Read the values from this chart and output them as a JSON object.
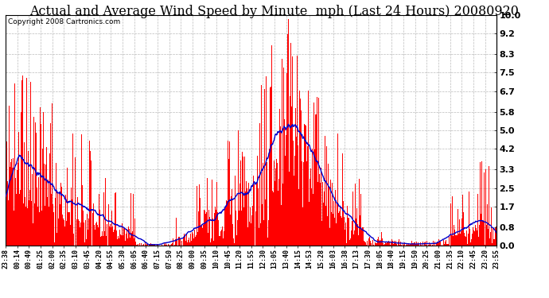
{
  "title": "Actual and Average Wind Speed by Minute  mph (Last 24 Hours) 20080920",
  "copyright": "Copyright 2008 Cartronics.com",
  "yticks": [
    0.0,
    0.8,
    1.7,
    2.5,
    3.3,
    4.2,
    5.0,
    5.8,
    6.7,
    7.5,
    8.3,
    9.2,
    10.0
  ],
  "ylim": [
    0.0,
    10.0
  ],
  "bar_color": "#ff0000",
  "line_color": "#0000cc",
  "bg_color": "#ffffff",
  "grid_color": "#bbbbbb",
  "title_fontsize": 11.5,
  "copyright_fontsize": 6.5,
  "xtick_fontsize": 6,
  "ytick_fontsize": 8,
  "x_labels": [
    "23:38",
    "00:14",
    "00:49",
    "01:25",
    "02:00",
    "02:35",
    "03:10",
    "03:45",
    "04:20",
    "04:55",
    "05:30",
    "06:05",
    "06:40",
    "07:15",
    "07:50",
    "08:25",
    "09:00",
    "09:35",
    "10:10",
    "10:45",
    "11:20",
    "11:55",
    "12:30",
    "13:05",
    "13:40",
    "14:15",
    "14:53",
    "15:28",
    "16:03",
    "16:38",
    "17:13",
    "17:30",
    "18:05",
    "18:40",
    "19:15",
    "19:50",
    "20:25",
    "21:00",
    "21:35",
    "22:10",
    "22:45",
    "23:20",
    "23:55"
  ],
  "n_points": 1440
}
